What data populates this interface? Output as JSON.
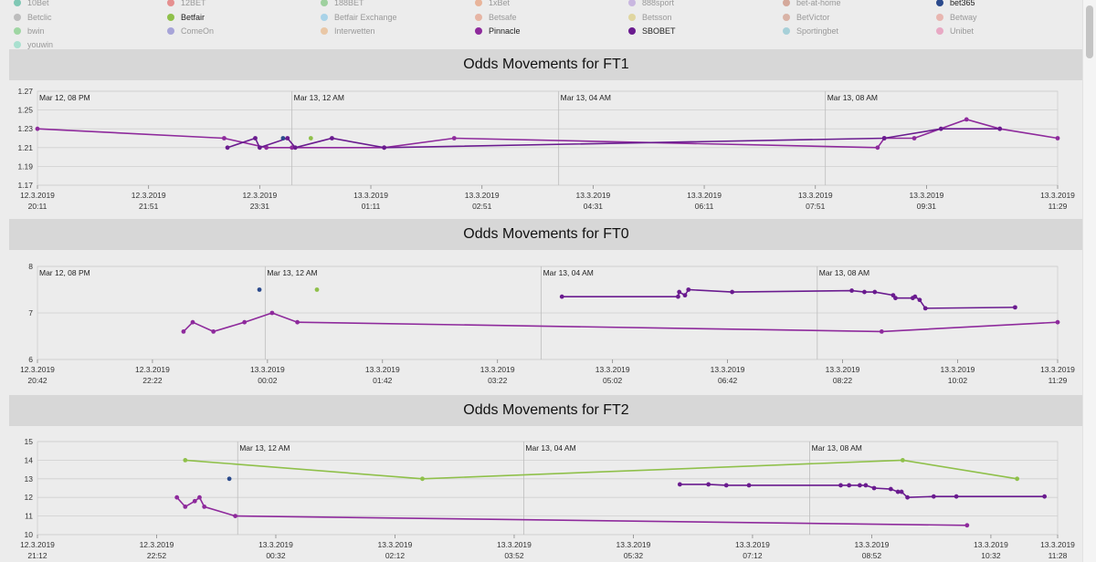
{
  "legend": [
    {
      "name": "10Bet",
      "color": "#7fc7b4",
      "active": false
    },
    {
      "name": "12BET",
      "color": "#e58f8f",
      "active": false
    },
    {
      "name": "188BET",
      "color": "#9ed09e",
      "active": false
    },
    {
      "name": "1xBet",
      "color": "#e8b49a",
      "active": false
    },
    {
      "name": "888sport",
      "color": "#c9b7e0",
      "active": false
    },
    {
      "name": "bet-at-home",
      "color": "#d4a89a",
      "active": false
    },
    {
      "name": "bet365",
      "color": "#2b4a8c",
      "active": true
    },
    {
      "name": "Betclic",
      "color": "#bdbdbd",
      "active": false
    },
    {
      "name": "Betfair",
      "color": "#8fc04a",
      "active": true
    },
    {
      "name": "Betfair Exchange",
      "color": "#a9d3e8",
      "active": false
    },
    {
      "name": "Betsafe",
      "color": "#e6b5a4",
      "active": false
    },
    {
      "name": "Betsson",
      "color": "#e0d6a0",
      "active": false
    },
    {
      "name": "BetVictor",
      "color": "#d9b3a6",
      "active": false
    },
    {
      "name": "Betway",
      "color": "#e8b6b0",
      "active": false
    },
    {
      "name": "bwin",
      "color": "#9fd6a3",
      "active": false
    },
    {
      "name": "ComeOn",
      "color": "#a7a4d8",
      "active": false
    },
    {
      "name": "Interwetten",
      "color": "#e9c7a6",
      "active": false
    },
    {
      "name": "Pinnacle",
      "color": "#8e2a9c",
      "active": true
    },
    {
      "name": "SBOBET",
      "color": "#6a1b8f",
      "active": true
    },
    {
      "name": "Sportingbet",
      "color": "#a7d0d8",
      "active": false
    },
    {
      "name": "Unibet",
      "color": "#e8a9c4",
      "active": false
    },
    {
      "name": "youwin",
      "color": "#a9e0cf",
      "active": false
    }
  ],
  "chart_data": [
    {
      "type": "line",
      "title": "Odds Movements for FT1",
      "x_ticks": [
        {
          "t": 0,
          "l1": "12.3.2019",
          "l2": "20:11"
        },
        {
          "t": 100,
          "l1": "12.3.2019",
          "l2": "21:51"
        },
        {
          "t": 200,
          "l1": "12.3.2019",
          "l2": "23:31"
        },
        {
          "t": 300,
          "l1": "13.3.2019",
          "l2": "01:11"
        },
        {
          "t": 400,
          "l1": "13.3.2019",
          "l2": "02:51"
        },
        {
          "t": 500,
          "l1": "13.3.2019",
          "l2": "04:31"
        },
        {
          "t": 600,
          "l1": "13.3.2019",
          "l2": "06:11"
        },
        {
          "t": 700,
          "l1": "13.3.2019",
          "l2": "07:51"
        },
        {
          "t": 800,
          "l1": "13.3.2019",
          "l2": "09:31"
        },
        {
          "t": 918,
          "l1": "13.3.2019",
          "l2": "11:29"
        }
      ],
      "xlim": [
        0,
        918
      ],
      "ylim": [
        1.17,
        1.27
      ],
      "y_ticks": [
        1.17,
        1.19,
        1.21,
        1.23,
        1.25,
        1.27
      ],
      "markers": [
        {
          "t": -11,
          "label": "Mar 12, 08 PM"
        },
        {
          "t": 229,
          "label": "Mar 13, 12 AM"
        },
        {
          "t": 469,
          "label": "Mar 13, 04 AM"
        },
        {
          "t": 709,
          "label": "Mar 13, 08 AM"
        }
      ],
      "series": [
        {
          "name": "Pinnacle",
          "color": "#8e2a9c",
          "line": true,
          "points": [
            [
              0,
              1.23
            ],
            [
              168,
              1.22
            ],
            [
              206,
              1.21
            ],
            [
              229,
              1.21
            ],
            [
              312,
              1.21
            ],
            [
              375,
              1.22
            ],
            [
              756,
              1.21
            ],
            [
              762,
              1.22
            ],
            [
              789,
              1.22
            ],
            [
              836,
              1.24
            ],
            [
              866,
              1.23
            ],
            [
              918,
              1.22
            ]
          ]
        },
        {
          "name": "SBOBET",
          "color": "#6a1b8f",
          "line": true,
          "points": [
            [
              171,
              1.21
            ],
            [
              196,
              1.22
            ],
            [
              200,
              1.21
            ],
            [
              225,
              1.22
            ],
            [
              232,
              1.21
            ],
            [
              265,
              1.22
            ],
            [
              312,
              1.21
            ],
            [
              762,
              1.22
            ],
            [
              813,
              1.23
            ],
            [
              866,
              1.23
            ]
          ]
        },
        {
          "name": "bet365",
          "color": "#2b4a8c",
          "line": false,
          "points": [
            [
              221,
              1.22
            ]
          ]
        },
        {
          "name": "Betfair",
          "color": "#8fc04a",
          "line": false,
          "points": [
            [
              246,
              1.22
            ]
          ]
        }
      ]
    },
    {
      "type": "line",
      "title": "Odds Movements for FT0",
      "x_ticks": [
        {
          "t": 0,
          "l1": "12.3.2019",
          "l2": "20:42"
        },
        {
          "t": 100,
          "l1": "12.3.2019",
          "l2": "22:22"
        },
        {
          "t": 200,
          "l1": "13.3.2019",
          "l2": "00:02"
        },
        {
          "t": 300,
          "l1": "13.3.2019",
          "l2": "01:42"
        },
        {
          "t": 400,
          "l1": "13.3.2019",
          "l2": "03:22"
        },
        {
          "t": 500,
          "l1": "13.3.2019",
          "l2": "05:02"
        },
        {
          "t": 600,
          "l1": "13.3.2019",
          "l2": "06:42"
        },
        {
          "t": 700,
          "l1": "13.3.2019",
          "l2": "08:22"
        },
        {
          "t": 800,
          "l1": "13.3.2019",
          "l2": "10:02"
        },
        {
          "t": 887,
          "l1": "13.3.2019",
          "l2": "11:29"
        }
      ],
      "xlim": [
        0,
        887
      ],
      "ylim": [
        6,
        8
      ],
      "y_ticks": [
        6,
        7,
        8
      ],
      "markers": [
        {
          "t": -42,
          "label": "Mar 12, 08 PM"
        },
        {
          "t": 198,
          "label": "Mar 13, 12 AM"
        },
        {
          "t": 438,
          "label": "Mar 13, 04 AM"
        },
        {
          "t": 678,
          "label": "Mar 13, 08 AM"
        }
      ],
      "series": [
        {
          "name": "Pinnacle",
          "color": "#8e2a9c",
          "line": true,
          "points": [
            [
              127,
              6.6
            ],
            [
              135,
              6.8
            ],
            [
              153,
              6.6
            ],
            [
              180,
              6.8
            ],
            [
              204,
              7.0
            ],
            [
              226,
              6.8
            ],
            [
              734,
              6.6
            ],
            [
              887,
              6.8
            ]
          ]
        },
        {
          "name": "SBOBET",
          "color": "#6a1b8f",
          "line": true,
          "points": [
            [
              456,
              7.35
            ],
            [
              557,
              7.35
            ],
            [
              558,
              7.45
            ],
            [
              563,
              7.38
            ],
            [
              566,
              7.5
            ],
            [
              604,
              7.45
            ],
            [
              708,
              7.48
            ],
            [
              719,
              7.45
            ],
            [
              728,
              7.45
            ],
            [
              744,
              7.38
            ],
            [
              746,
              7.32
            ],
            [
              761,
              7.32
            ],
            [
              763,
              7.35
            ],
            [
              767,
              7.28
            ],
            [
              772,
              7.1
            ],
            [
              850,
              7.12
            ]
          ]
        },
        {
          "name": "bet365",
          "color": "#2b4a8c",
          "line": false,
          "points": [
            [
              193,
              7.5
            ]
          ]
        },
        {
          "name": "Betfair",
          "color": "#8fc04a",
          "line": false,
          "points": [
            [
              243,
              7.5
            ]
          ]
        }
      ]
    },
    {
      "type": "line",
      "title": "Odds Movements for FT2",
      "x_ticks": [
        {
          "t": 0,
          "l1": "12.3.2019",
          "l2": "21:12"
        },
        {
          "t": 100,
          "l1": "12.3.2019",
          "l2": "22:52"
        },
        {
          "t": 200,
          "l1": "13.3.2019",
          "l2": "00:32"
        },
        {
          "t": 300,
          "l1": "13.3.2019",
          "l2": "02:12"
        },
        {
          "t": 400,
          "l1": "13.3.2019",
          "l2": "03:52"
        },
        {
          "t": 500,
          "l1": "13.3.2019",
          "l2": "05:32"
        },
        {
          "t": 600,
          "l1": "13.3.2019",
          "l2": "07:12"
        },
        {
          "t": 700,
          "l1": "13.3.2019",
          "l2": "08:52"
        },
        {
          "t": 800,
          "l1": "13.3.2019",
          "l2": "10:32"
        },
        {
          "t": 856,
          "l1": "13.3.2019",
          "l2": "11:28"
        }
      ],
      "xlim": [
        0,
        856
      ],
      "ylim": [
        10,
        15
      ],
      "y_ticks": [
        10,
        11,
        12,
        13,
        14,
        15
      ],
      "markers": [
        {
          "t": 168,
          "label": "Mar 13, 12 AM"
        },
        {
          "t": 408,
          "label": "Mar 13, 04 AM"
        },
        {
          "t": 648,
          "label": "Mar 13, 08 AM"
        }
      ],
      "series": [
        {
          "name": "Pinnacle",
          "color": "#8e2a9c",
          "line": true,
          "points": [
            [
              117,
              12
            ],
            [
              124,
              11.5
            ],
            [
              132,
              11.8
            ],
            [
              136,
              12
            ],
            [
              140,
              11.5
            ],
            [
              166,
              11
            ],
            [
              780,
              10.5
            ]
          ]
        },
        {
          "name": "SBOBET",
          "color": "#6a1b8f",
          "line": true,
          "points": [
            [
              539,
              12.7
            ],
            [
              563,
              12.7
            ],
            [
              578,
              12.65
            ],
            [
              597,
              12.65
            ],
            [
              674,
              12.65
            ],
            [
              681,
              12.65
            ],
            [
              690,
              12.65
            ],
            [
              695,
              12.65
            ],
            [
              702,
              12.5
            ],
            [
              716,
              12.45
            ],
            [
              722,
              12.3
            ],
            [
              725,
              12.3
            ],
            [
              730,
              12.0
            ],
            [
              752,
              12.05
            ],
            [
              771,
              12.05
            ],
            [
              845,
              12.05
            ]
          ]
        },
        {
          "name": "Betfair",
          "color": "#8fc04a",
          "line": true,
          "points": [
            [
              124,
              14
            ],
            [
              323,
              13
            ],
            [
              726,
              14
            ],
            [
              822,
              13
            ]
          ]
        },
        {
          "name": "bet365",
          "color": "#2b4a8c",
          "line": false,
          "points": [
            [
              161,
              13
            ]
          ]
        }
      ]
    }
  ]
}
